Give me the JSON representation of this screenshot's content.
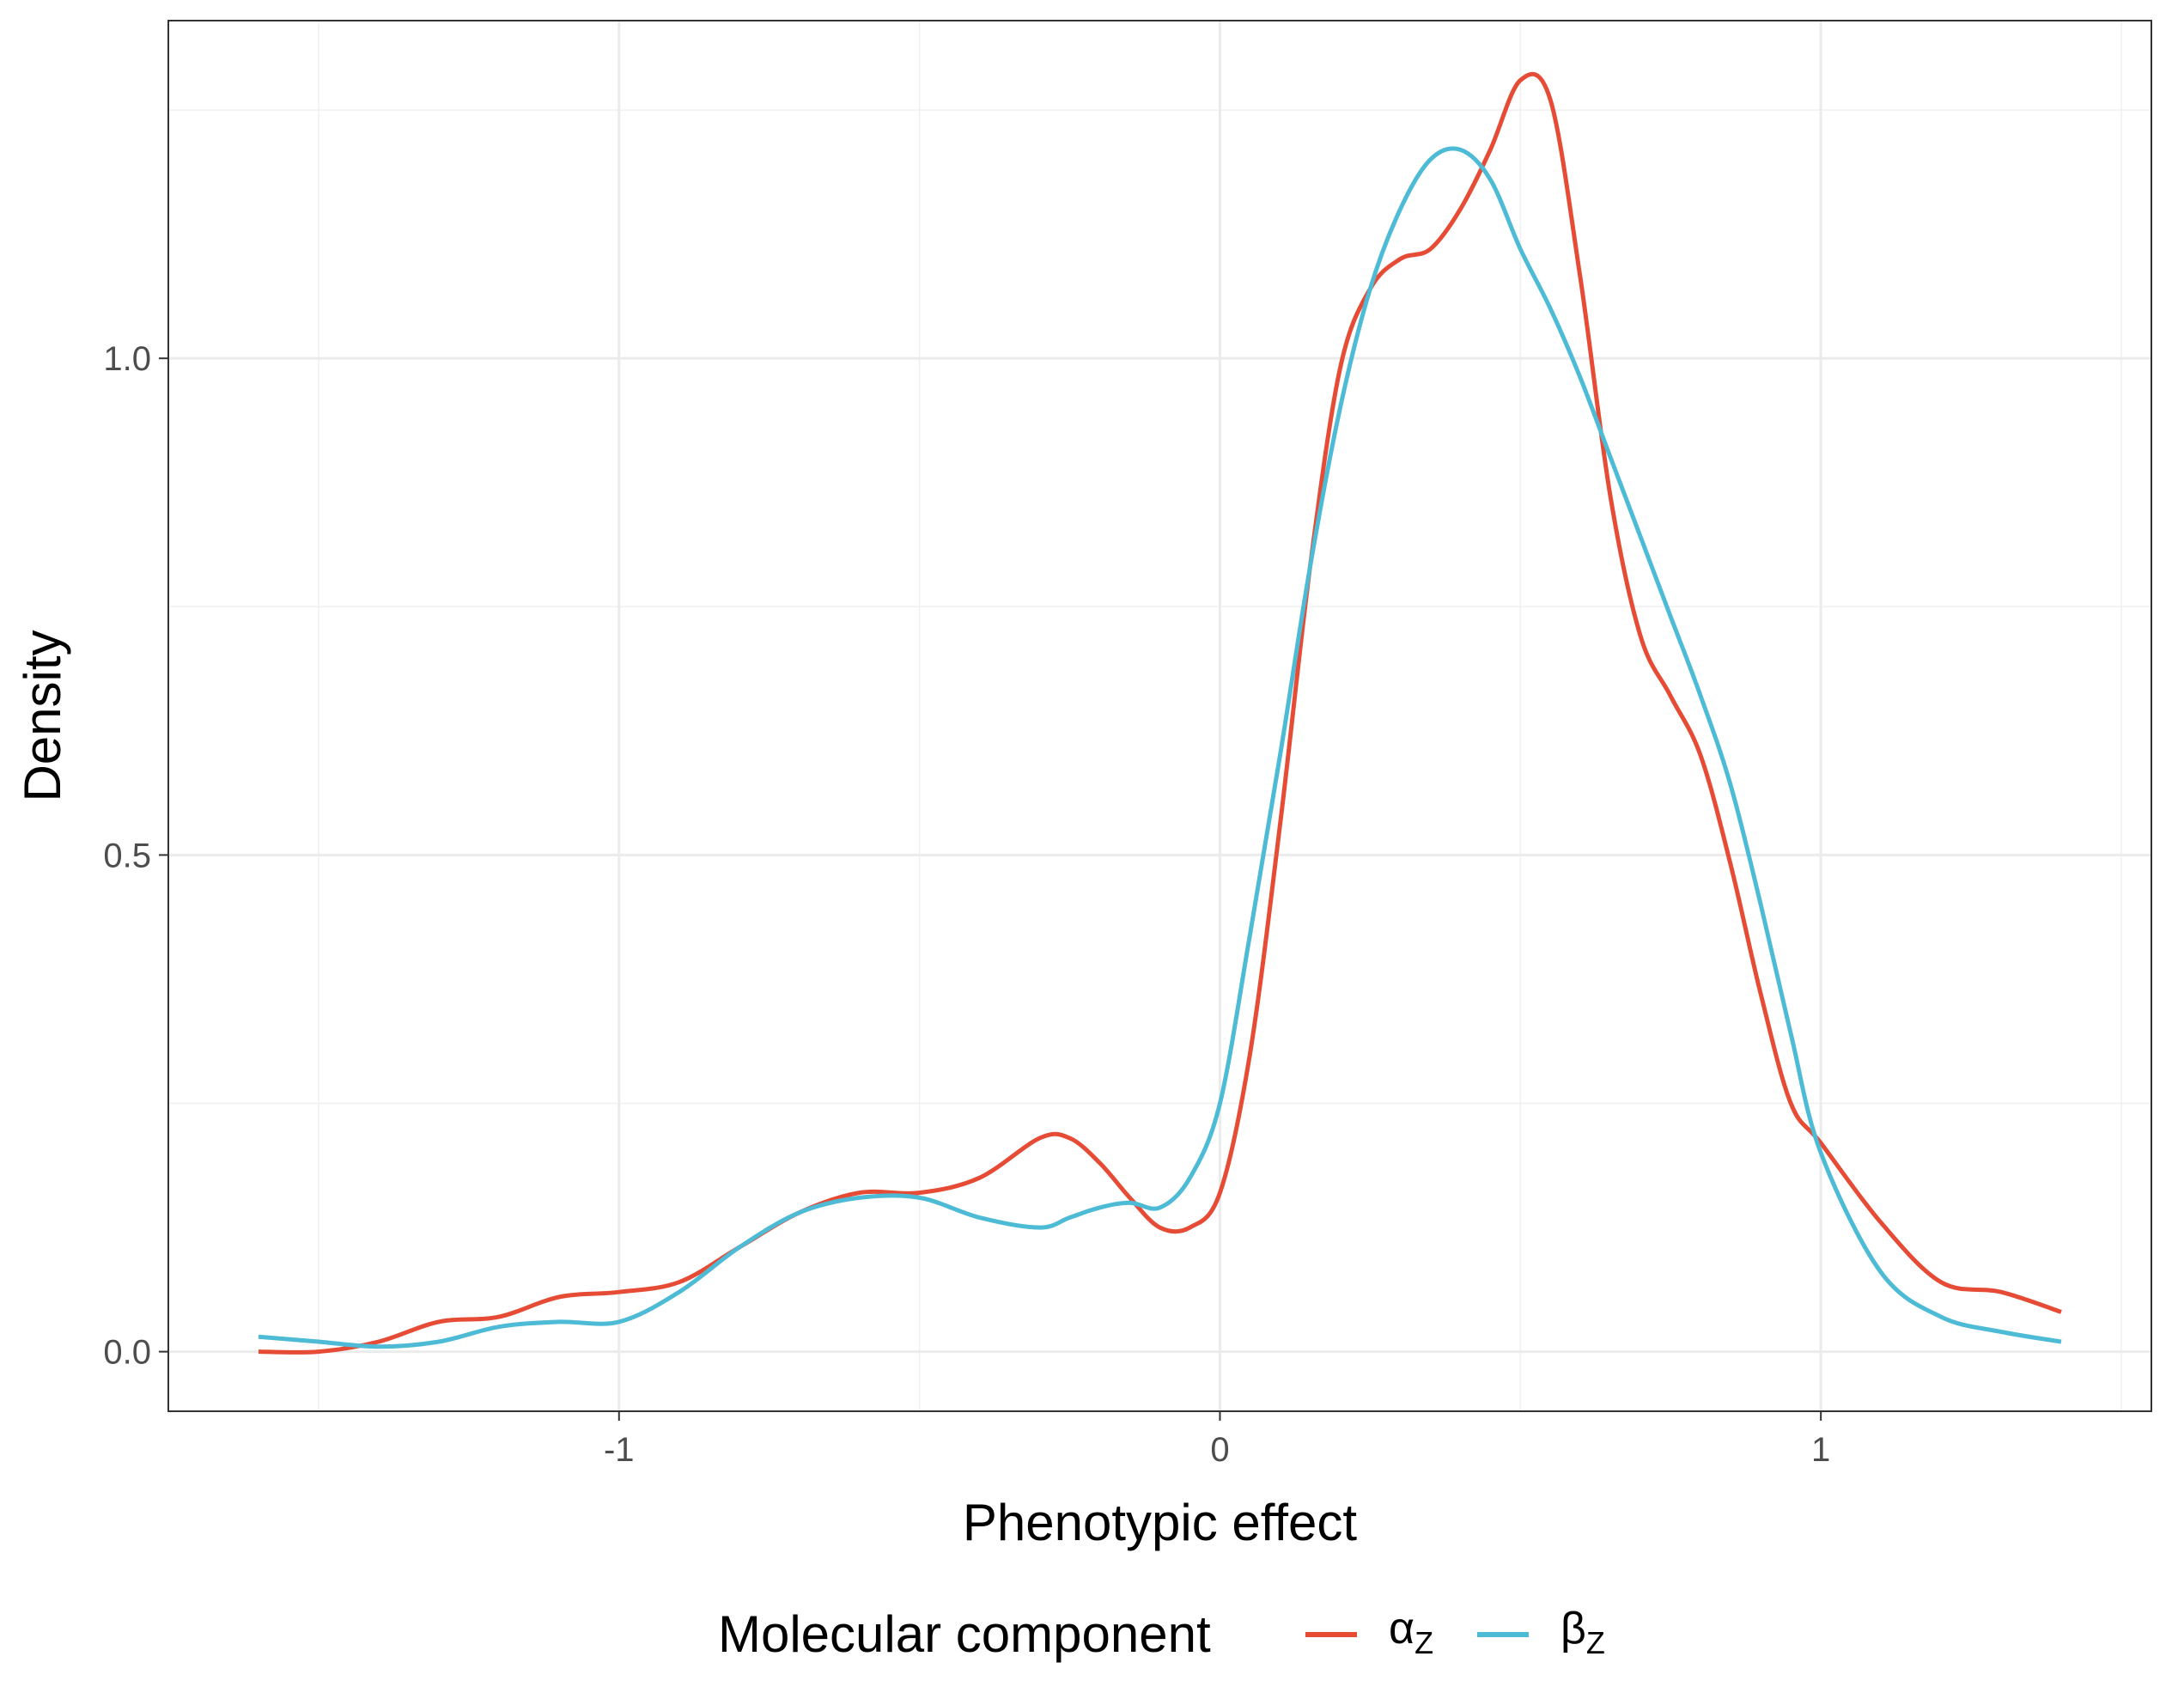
{
  "chart_data": {
    "type": "line",
    "title": "",
    "xlabel": "Phenotypic effect",
    "ylabel": "Density",
    "xlim": [
      -1.75,
      1.55
    ],
    "ylim": [
      -0.06,
      1.34
    ],
    "x_ticks": [
      -1,
      0,
      1
    ],
    "x_tick_labels": [
      "-1",
      "0",
      "1"
    ],
    "y_ticks": [
      0.0,
      0.5,
      1.0
    ],
    "y_tick_labels": [
      "0.0",
      "0.5",
      "1.0"
    ],
    "x_minor_ticks": [
      -1.5,
      -0.5,
      0.5,
      1.5
    ],
    "y_minor_ticks": [
      0.25,
      0.75,
      1.25
    ],
    "grid": true,
    "legend": {
      "title": "Molecular component",
      "position": "bottom",
      "entries": [
        {
          "symbol": "α",
          "sub": "Z"
        },
        {
          "symbol": "β",
          "sub": "Z"
        }
      ]
    },
    "series": [
      {
        "color": "#E64B35",
        "x": [
          -1.6,
          -1.5,
          -1.4,
          -1.3,
          -1.2,
          -1.1,
          -1.0,
          -0.9,
          -0.8,
          -0.7,
          -0.6,
          -0.5,
          -0.4,
          -0.3,
          -0.25,
          -0.2,
          -0.15,
          -0.1,
          -0.05,
          0.0,
          0.05,
          0.1,
          0.15,
          0.2,
          0.25,
          0.3,
          0.35,
          0.4,
          0.45,
          0.5,
          0.55,
          0.6,
          0.65,
          0.7,
          0.75,
          0.8,
          0.85,
          0.9,
          0.95,
          1.0,
          1.1,
          1.2,
          1.3,
          1.4
        ],
        "y": [
          0.0,
          0.0,
          0.01,
          0.03,
          0.035,
          0.055,
          0.06,
          0.07,
          0.105,
          0.14,
          0.16,
          0.16,
          0.175,
          0.215,
          0.215,
          0.19,
          0.155,
          0.125,
          0.125,
          0.16,
          0.3,
          0.53,
          0.79,
          0.99,
          1.07,
          1.1,
          1.11,
          1.15,
          1.21,
          1.28,
          1.26,
          1.08,
          0.86,
          0.72,
          0.66,
          0.6,
          0.49,
          0.36,
          0.25,
          0.21,
          0.13,
          0.07,
          0.06,
          0.04
        ]
      },
      {
        "color": "#4DBBD5",
        "x": [
          -1.6,
          -1.5,
          -1.4,
          -1.3,
          -1.2,
          -1.1,
          -1.0,
          -0.9,
          -0.8,
          -0.7,
          -0.6,
          -0.5,
          -0.4,
          -0.3,
          -0.25,
          -0.2,
          -0.15,
          -0.1,
          -0.05,
          0.0,
          0.05,
          0.1,
          0.15,
          0.2,
          0.25,
          0.3,
          0.35,
          0.4,
          0.45,
          0.5,
          0.55,
          0.6,
          0.65,
          0.7,
          0.75,
          0.8,
          0.85,
          0.9,
          0.95,
          1.0,
          1.1,
          1.2,
          1.3,
          1.4
        ],
        "y": [
          0.015,
          0.01,
          0.005,
          0.01,
          0.025,
          0.03,
          0.03,
          0.06,
          0.105,
          0.14,
          0.155,
          0.155,
          0.135,
          0.125,
          0.135,
          0.145,
          0.15,
          0.145,
          0.175,
          0.25,
          0.42,
          0.6,
          0.79,
          0.95,
          1.07,
          1.15,
          1.2,
          1.21,
          1.18,
          1.11,
          1.05,
          0.98,
          0.9,
          0.82,
          0.74,
          0.66,
          0.57,
          0.45,
          0.32,
          0.2,
          0.08,
          0.035,
          0.02,
          0.01
        ]
      }
    ]
  }
}
